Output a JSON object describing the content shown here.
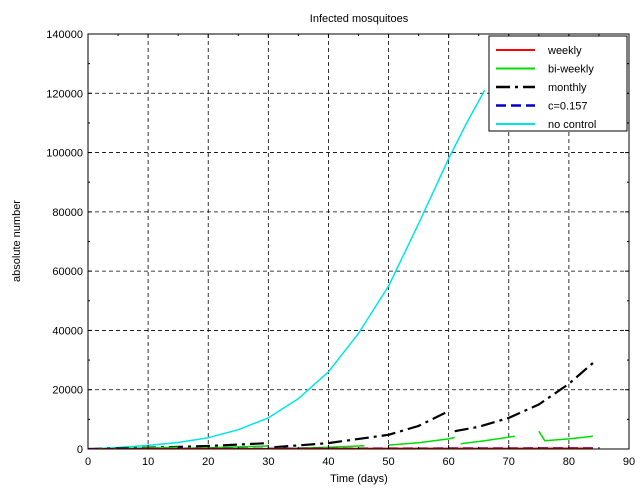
{
  "chart_data": {
    "type": "line",
    "title": "Infected mosquitoes",
    "xlabel": "Time (days)",
    "ylabel": "absolute number",
    "xlim": [
      0,
      90
    ],
    "ylim": [
      0,
      140000
    ],
    "xticks": [
      0,
      10,
      20,
      30,
      40,
      50,
      60,
      70,
      80,
      90
    ],
    "yticks": [
      0,
      20000,
      40000,
      60000,
      80000,
      100000,
      120000,
      140000
    ],
    "grid": true,
    "legend_position": "top-right",
    "series": [
      {
        "name": "weekly",
        "color": "#ff0000",
        "style": "solid",
        "x": [
          0,
          10,
          20,
          30,
          40,
          50,
          60,
          70,
          80,
          84
        ],
        "y": [
          0,
          80,
          120,
          150,
          170,
          190,
          200,
          210,
          220,
          230
        ]
      },
      {
        "name": "bi-weekly",
        "color": "#00dd00",
        "style": "solid",
        "segments": [
          {
            "x": [
              0,
              5,
              10,
              15
            ],
            "y": [
              0,
              150,
              350,
              600
            ]
          },
          {
            "x": [
              16,
              20,
              25,
              30
            ],
            "y": [
              250,
              450,
              700,
              1000
            ]
          },
          {
            "x": [
              31,
              35,
              40,
              46
            ],
            "y": [
              150,
              300,
              600,
              1100
            ]
          },
          {
            "x": [
              50,
              55,
              60,
              61
            ],
            "y": [
              1300,
              2100,
              3400,
              3900
            ]
          },
          {
            "x": [
              62,
              66,
              71
            ],
            "y": [
              1800,
              2800,
              4300
            ]
          },
          {
            "x": [
              75,
              76,
              80,
              84
            ],
            "y": [
              6000,
              2800,
              3400,
              4300
            ]
          }
        ]
      },
      {
        "name": "monthly",
        "color": "#000000",
        "style": "dash-dot",
        "segments": [
          {
            "x": [
              0,
              10,
              20,
              30
            ],
            "y": [
              0,
              450,
              1000,
              2000
            ]
          },
          {
            "x": [
              31,
              40,
              50,
              55,
              60
            ],
            "y": [
              600,
              2000,
              4800,
              7800,
              12800
            ]
          },
          {
            "x": [
              61,
              65,
              70,
              75,
              80,
              84
            ],
            "y": [
              6000,
              7500,
              10500,
              15000,
              22000,
              29000
            ]
          }
        ]
      },
      {
        "name": "c=0.157",
        "color": "#0000cc",
        "style": "dash",
        "x": [
          0,
          20,
          40,
          60,
          84
        ],
        "y": [
          0,
          100,
          180,
          240,
          300
        ]
      },
      {
        "name": "no control",
        "color": "#00e5e5",
        "style": "solid",
        "x": [
          0,
          5,
          10,
          15,
          20,
          25,
          30,
          35,
          40,
          45,
          50,
          55,
          60,
          63,
          66
        ],
        "y": [
          0,
          500,
          1200,
          2200,
          3800,
          6500,
          10500,
          17000,
          26000,
          39000,
          55000,
          76000,
          98000,
          110000,
          121000
        ]
      }
    ]
  }
}
